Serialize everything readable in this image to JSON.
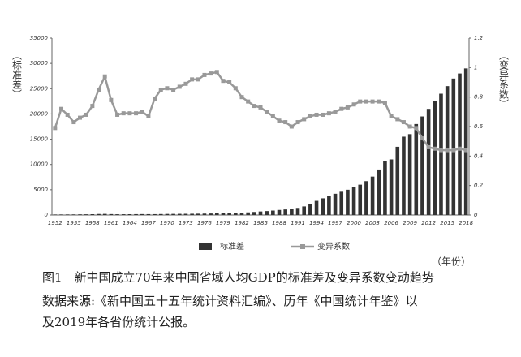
{
  "chart_data": {
    "type": "bar_line",
    "y_label": "（标准差）",
    "y2_label": "（变异系数）",
    "x_label": "（年份）",
    "categories": [
      1952,
      null,
      null,
      1955,
      null,
      null,
      1958,
      null,
      null,
      1961,
      null,
      null,
      1964,
      null,
      null,
      1967,
      null,
      null,
      1970,
      null,
      null,
      1973,
      null,
      null,
      1976,
      null,
      null,
      1979,
      null,
      null,
      1982,
      null,
      null,
      1985,
      null,
      null,
      1988,
      null,
      null,
      1991,
      null,
      null,
      1994,
      null,
      null,
      1997,
      null,
      null,
      2000,
      null,
      null,
      2003,
      null,
      null,
      2006,
      null,
      null,
      2009,
      null,
      null,
      2012,
      null,
      null,
      2015,
      null,
      null,
      2018
    ],
    "series": [
      {
        "name": "标准差",
        "type": "bar",
        "color": "#333333",
        "values": [
          100,
          110,
          110,
          120,
          130,
          140,
          160,
          200,
          220,
          180,
          150,
          150,
          160,
          170,
          180,
          170,
          170,
          190,
          210,
          220,
          230,
          240,
          250,
          260,
          280,
          300,
          350,
          380,
          420,
          450,
          480,
          520,
          600,
          700,
          780,
          880,
          1000,
          1100,
          1200,
          1400,
          1700,
          2200,
          2800,
          3300,
          3800,
          4200,
          4600,
          5000,
          5500,
          6000,
          6700,
          7600,
          9000,
          10600,
          11000,
          13500,
          15500,
          16000,
          18000,
          19500,
          21000,
          22500,
          24000,
          25500,
          27000,
          28000,
          29000
        ]
      },
      {
        "name": "变异系数",
        "type": "line",
        "axis": "y2",
        "color": "#999999",
        "values": [
          0.59,
          0.72,
          0.68,
          0.63,
          0.66,
          0.68,
          0.74,
          0.85,
          0.94,
          0.78,
          0.68,
          0.69,
          0.69,
          0.69,
          0.7,
          0.67,
          0.79,
          0.85,
          0.86,
          0.85,
          0.87,
          0.89,
          0.92,
          0.92,
          0.95,
          0.96,
          0.97,
          0.91,
          0.9,
          0.86,
          0.8,
          0.77,
          0.74,
          0.73,
          0.7,
          0.67,
          0.64,
          0.63,
          0.6,
          0.63,
          0.65,
          0.67,
          0.68,
          0.68,
          0.69,
          0.7,
          0.72,
          0.73,
          0.75,
          0.77,
          0.77,
          0.77,
          0.77,
          0.76,
          0.67,
          0.65,
          0.63,
          0.6,
          0.59,
          0.52,
          0.46,
          0.45,
          0.44,
          0.44,
          0.44,
          0.45,
          0.44
        ]
      }
    ],
    "ylim": [
      0,
      35000
    ],
    "yticks": [
      0,
      5000,
      10000,
      15000,
      20000,
      25000,
      30000,
      35000
    ],
    "y2lim": [
      0,
      1.2
    ],
    "y2ticks": [
      0,
      0.2,
      0.4,
      0.6,
      0.8,
      1,
      1.2
    ]
  },
  "caption": "图1　新中国成立70年来中国省域人均GDP的标准差及变异系数变动趋势",
  "source": "数据来源:《新中国五十五年统计资料汇编》、历年《中国统计年鉴》以及2019年各省份统计公报。"
}
